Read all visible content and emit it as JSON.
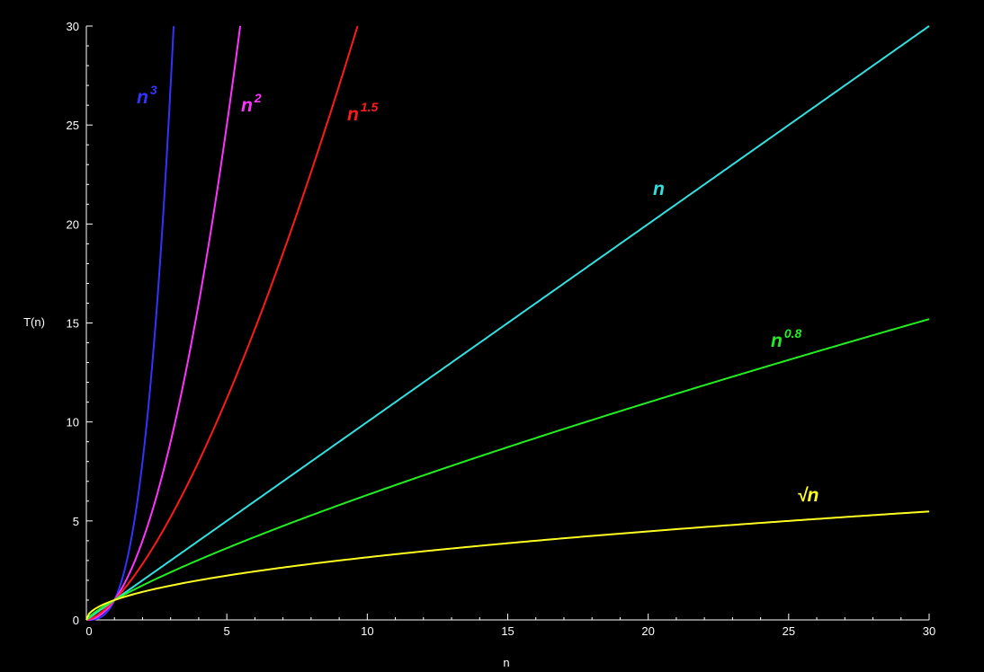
{
  "chart_data": {
    "type": "line",
    "title": "",
    "xlabel": "n",
    "ylabel": "T(n)",
    "xlim": [
      0,
      30
    ],
    "ylim": [
      0,
      30
    ],
    "grid": false,
    "background": "#000000",
    "axis_color": "#ffffff",
    "x_ticks": [
      "0",
      "5",
      "10",
      "15",
      "20",
      "25",
      "30"
    ],
    "y_ticks": [
      "0",
      "5",
      "10",
      "15",
      "20",
      "25",
      "30"
    ],
    "series": [
      {
        "label": {
          "base": "n",
          "exp": "3"
        },
        "color": "#3333ff",
        "x": [
          0,
          0.5,
          1,
          1.5,
          2,
          2.5,
          3,
          3.107
        ],
        "y": [
          0,
          0.125,
          1,
          3.375,
          8,
          15.625,
          27,
          30
        ]
      },
      {
        "label": {
          "base": "n",
          "exp": "2"
        },
        "color": "#ff33ff",
        "x": [
          0,
          0.5,
          1,
          2,
          3,
          4,
          5,
          5.477
        ],
        "y": [
          0,
          0.25,
          1,
          4,
          9,
          16,
          25,
          30
        ]
      },
      {
        "label": {
          "base": "n",
          "exp": "1.5"
        },
        "color": "#ff1a1a",
        "x": [
          0,
          1,
          2,
          3,
          4,
          5,
          6,
          7,
          8,
          9,
          9.655
        ],
        "y": [
          0,
          1,
          2.83,
          5.2,
          8,
          11.18,
          14.7,
          18.52,
          22.63,
          27,
          30
        ]
      },
      {
        "label": {
          "base": "n",
          "exp": ""
        },
        "color": "#33e0e0",
        "x": [
          0,
          5,
          10,
          15,
          20,
          25,
          30
        ],
        "y": [
          0,
          5,
          10,
          15,
          20,
          25,
          30
        ]
      },
      {
        "label": {
          "base": "n",
          "exp": "0.8"
        },
        "color": "#22ee22",
        "x": [
          0,
          1,
          2,
          5,
          10,
          15,
          20,
          25,
          30
        ],
        "y": [
          0,
          1,
          1.74,
          3.62,
          6.31,
          8.73,
          10.99,
          13.13,
          15.16
        ]
      },
      {
        "label": {
          "base": "√n",
          "exp": ""
        },
        "color": "#ffff22",
        "x": [
          0,
          1,
          2,
          5,
          10,
          15,
          20,
          25,
          30
        ],
        "y": [
          0,
          1,
          1.41,
          2.24,
          3.16,
          3.87,
          4.47,
          5,
          5.48
        ]
      }
    ]
  }
}
